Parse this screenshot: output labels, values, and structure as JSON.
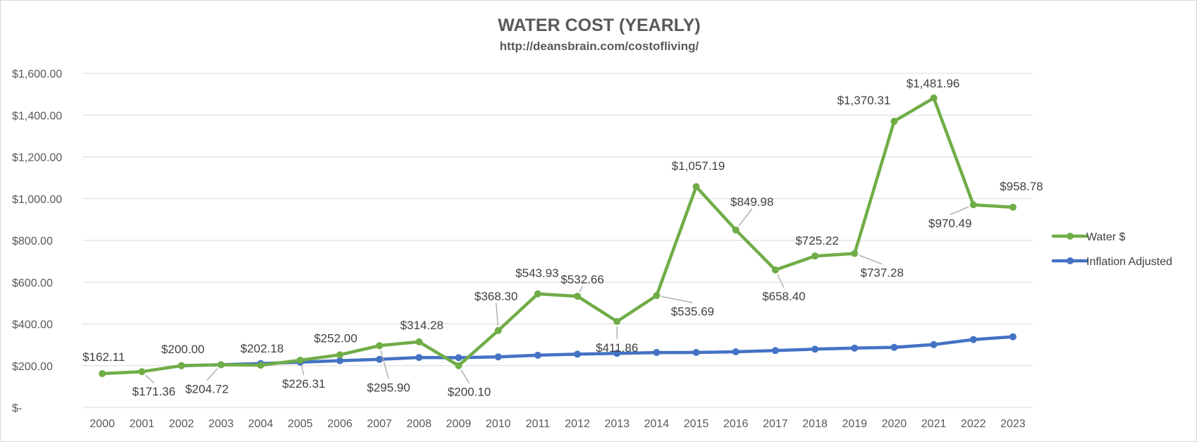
{
  "chart_data": {
    "type": "line",
    "title": "WATER COST (YEARLY)",
    "subtitle": "http://deansbrain.com/costofliving/",
    "xlabel": "",
    "ylabel": "",
    "categories": [
      "2000",
      "2001",
      "2002",
      "2003",
      "2004",
      "2005",
      "2006",
      "2007",
      "2008",
      "2009",
      "2010",
      "2011",
      "2012",
      "2013",
      "2014",
      "2015",
      "2016",
      "2017",
      "2018",
      "2019",
      "2020",
      "2021",
      "2022",
      "2023"
    ],
    "ylim": [
      0,
      1600
    ],
    "y_ticks": [
      0,
      200,
      400,
      600,
      800,
      1000,
      1200,
      1400,
      1600
    ],
    "y_tick_labels": [
      "$-",
      "$200.00",
      "$400.00",
      "$600.00",
      "$800.00",
      "$1,000.00",
      "$1,200.00",
      "$1,400.00",
      "$1,600.00"
    ],
    "grid": true,
    "legend_position": "right",
    "series": [
      {
        "name": "Water $",
        "color": "#70ad47",
        "values": [
          162.11,
          171.36,
          200.0,
          204.72,
          202.18,
          226.31,
          252.0,
          295.9,
          314.28,
          200.1,
          368.3,
          543.93,
          532.66,
          411.86,
          535.69,
          1057.19,
          849.98,
          658.4,
          725.22,
          737.28,
          1370.31,
          1481.96,
          970.49,
          958.78
        ],
        "data_labels": [
          "$162.11",
          "$171.36",
          "$200.00",
          "$204.72",
          "$202.18",
          "$226.31",
          "$252.00",
          "$295.90",
          "$314.28",
          "$200.10",
          "$368.30",
          "$543.93",
          "$532.66",
          "$411.86",
          "$535.69",
          "$1,057.19",
          "$849.98",
          "$658.40",
          "$725.22",
          "$737.28",
          "$1,370.31",
          "$1,481.96",
          "$970.49",
          "$958.78"
        ]
      },
      {
        "name": "Inflation Adjusted",
        "color": "#4472c4",
        "start_index": 2,
        "values": [
          null,
          null,
          200.0,
          204.47,
          209.93,
          217.05,
          224.05,
          230.43,
          239.28,
          238.43,
          242.34,
          249.99,
          255.17,
          258.9,
          263.1,
          263.42,
          266.74,
          272.42,
          279.08,
          284.13,
          287.63,
          301.12,
          325.2,
          338.58
        ]
      }
    ]
  }
}
